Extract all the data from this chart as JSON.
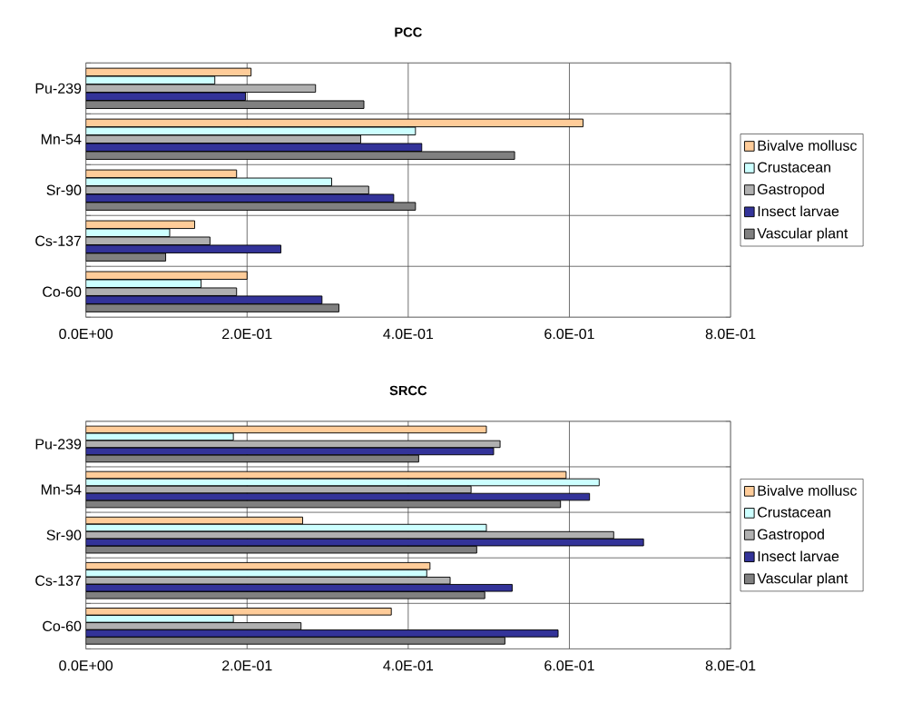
{
  "chart_data": [
    {
      "type": "bar",
      "orientation": "horizontal",
      "title": "PCC",
      "categories": [
        "Pu-239",
        "Mn-54",
        "Sr-90",
        "Cs-137",
        "Co-60"
      ],
      "series": [
        {
          "name": "Bivalve mollusc",
          "color": "#ffcc99",
          "values": [
            0.205,
            0.617,
            0.187,
            0.135,
            0.2
          ]
        },
        {
          "name": "Crustacean",
          "color": "#ccffff",
          "values": [
            0.16,
            0.409,
            0.305,
            0.104,
            0.143
          ]
        },
        {
          "name": "Gastropod",
          "color": "#b0b0b0",
          "values": [
            0.285,
            0.341,
            0.351,
            0.154,
            0.187
          ]
        },
        {
          "name": "Insect larvae",
          "color": "#333399",
          "values": [
            0.198,
            0.417,
            0.382,
            0.242,
            0.293
          ]
        },
        {
          "name": "Vascular plant",
          "color": "#808080",
          "values": [
            0.345,
            0.532,
            0.409,
            0.099,
            0.314
          ]
        }
      ],
      "xlim": [
        0,
        0.8
      ],
      "xticks": [
        {
          "value": 0,
          "label": "0.0E+00"
        },
        {
          "value": 0.2,
          "label": "2.0E-01"
        },
        {
          "value": 0.4,
          "label": "4.0E-01"
        },
        {
          "value": 0.6,
          "label": "6.0E-01"
        },
        {
          "value": 0.8,
          "label": "8.0E-01"
        }
      ],
      "grid": true,
      "legend": "right"
    },
    {
      "type": "bar",
      "orientation": "horizontal",
      "title": "SRCC",
      "categories": [
        "Pu-239",
        "Mn-54",
        "Sr-90",
        "Cs-137",
        "Co-60"
      ],
      "series": [
        {
          "name": "Bivalve mollusc",
          "color": "#ffcc99",
          "values": [
            0.497,
            0.596,
            0.269,
            0.427,
            0.379
          ]
        },
        {
          "name": "Crustacean",
          "color": "#ccffff",
          "values": [
            0.183,
            0.637,
            0.497,
            0.423,
            0.183
          ]
        },
        {
          "name": "Gastropod",
          "color": "#b0b0b0",
          "values": [
            0.514,
            0.478,
            0.655,
            0.452,
            0.267
          ]
        },
        {
          "name": "Insect larvae",
          "color": "#333399",
          "values": [
            0.506,
            0.625,
            0.692,
            0.529,
            0.586
          ]
        },
        {
          "name": "Vascular plant",
          "color": "#808080",
          "values": [
            0.413,
            0.589,
            0.485,
            0.495,
            0.52
          ]
        }
      ],
      "xlim": [
        0,
        0.8
      ],
      "xticks": [
        {
          "value": 0,
          "label": "0.0E+00"
        },
        {
          "value": 0.2,
          "label": "2.0E-01"
        },
        {
          "value": 0.4,
          "label": "4.0E-01"
        },
        {
          "value": 0.6,
          "label": "6.0E-01"
        },
        {
          "value": 0.8,
          "label": "8.0E-01"
        }
      ],
      "grid": true,
      "legend": "right"
    }
  ]
}
